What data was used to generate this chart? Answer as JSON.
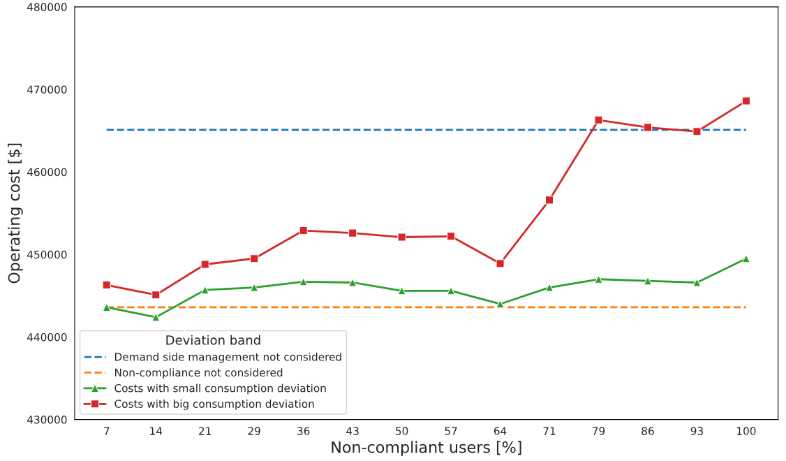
{
  "chart_data": {
    "type": "line",
    "xlabel": "Non-compliant users [%]",
    "ylabel": "Operating cost [$]",
    "legend_title": "Deviation band",
    "legend": "bottom left",
    "grid": false,
    "categories": [
      "7",
      "14",
      "21",
      "29",
      "36",
      "43",
      "50",
      "57",
      "64",
      "71",
      "79",
      "86",
      "93",
      "100"
    ],
    "ylim": [
      430000,
      480000
    ],
    "yticks": [
      430000,
      440000,
      450000,
      460000,
      470000,
      480000
    ],
    "series": [
      {
        "name": "Demand side management not considered",
        "color": "#1f77b4",
        "line_style": "dashed",
        "marker": "none",
        "values": [
          465100,
          465100,
          465100,
          465100,
          465100,
          465100,
          465100,
          465100,
          465100,
          465100,
          465100,
          465100,
          465100,
          465100
        ]
      },
      {
        "name": "Non-compliance not considered",
        "color": "#ff7f0e",
        "line_style": "dashed",
        "marker": "none",
        "values": [
          443600,
          443600,
          443600,
          443600,
          443600,
          443600,
          443600,
          443600,
          443600,
          443600,
          443600,
          443600,
          443600,
          443600
        ]
      },
      {
        "name": "Costs with small consumption deviation",
        "color": "#2ca02c",
        "line_style": "solid",
        "marker": "triangle",
        "values": [
          443600,
          442400,
          445700,
          446000,
          446700,
          446600,
          445600,
          445600,
          444000,
          446000,
          447000,
          446800,
          446600,
          449500
        ]
      },
      {
        "name": "Costs with big consumption deviation",
        "color": "#d62728",
        "line_style": "solid",
        "marker": "square",
        "values": [
          446300,
          445100,
          448800,
          449500,
          452900,
          452600,
          452100,
          452200,
          448900,
          456600,
          466300,
          465400,
          464900,
          468600
        ]
      }
    ]
  }
}
